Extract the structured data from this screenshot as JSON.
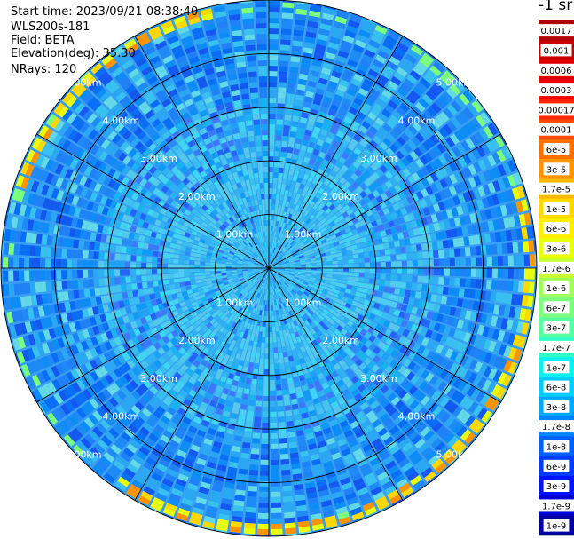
{
  "info": {
    "start_time": "Start time: 2023/09/21 08:38:40",
    "device": "WLS200s-181",
    "field": "Field: BETA",
    "elevation": "Elevation(deg): 35.30",
    "nrays": "NRays: 120"
  },
  "colorbar": {
    "unit_label": "-1 sr",
    "labels": [
      "0.0017",
      "0.001",
      "0.0006",
      "0.0003",
      "0.00017",
      "0.0001",
      "6e-5",
      "3e-5",
      "1.7e-5",
      "1e-5",
      "6e-6",
      "3e-6",
      "1.7e-6",
      "1e-6",
      "6e-7",
      "3e-7",
      "1.7e-7",
      "1e-7",
      "6e-8",
      "3e-8",
      "1.7e-8",
      "1e-8",
      "6e-9",
      "3e-9",
      "1.7e-9",
      "1e-9"
    ],
    "colors": [
      "#b00000",
      "#c80000",
      "#e00000",
      "#f00000",
      "#ff2400",
      "#ff4c00",
      "#ff7000",
      "#ff9400",
      "#ffb800",
      "#ffd800",
      "#ffee00",
      "#eaff0c",
      "#c8ff30",
      "#a0ff58",
      "#7cff7c",
      "#58ffa0",
      "#30ffc8",
      "#0cf0ee",
      "#00ccff",
      "#00a8ff",
      "#0084ff",
      "#0060ff",
      "#003cff",
      "#0014f8",
      "#0000d0",
      "#0000a0"
    ]
  },
  "chart_data": {
    "type": "ppi_polar",
    "nrays": 120,
    "max_range_km": 5.0,
    "range_ring_labels": [
      "1.00km",
      "2.00km",
      "3.00km",
      "4.00km",
      "5.00km"
    ],
    "range_ring_km": [
      1,
      2,
      3,
      4,
      5
    ],
    "spoke_angles_deg": [
      0,
      30,
      60,
      90,
      120,
      150,
      180,
      210,
      240,
      270,
      300,
      330
    ],
    "near_field_color": "#4ccfee",
    "far_field_color": "#1e8af6",
    "high_backscatter_ring_km": 4.85,
    "high_backscatter_colors": [
      "#ffd800",
      "#ff9400",
      "#eaff0c"
    ]
  }
}
